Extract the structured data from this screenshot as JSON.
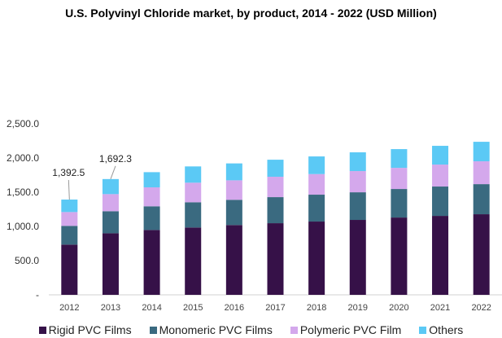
{
  "chart_data": {
    "type": "bar",
    "stacked": true,
    "title": "U.S. Polyvinyl Chloride market, by product, 2014 - 2022 (USD Million)",
    "xlabel": "",
    "ylabel": "",
    "ylim": [
      0,
      2500
    ],
    "yticks": [
      0,
      500,
      1000,
      1500,
      2000,
      2500
    ],
    "ytick_labels": [
      "-",
      "500.0",
      "1,000.0",
      "1,500.0",
      "2,000.0",
      "2,500.0"
    ],
    "grid": false,
    "legend_position": "bottom",
    "categories": [
      "2012",
      "2013",
      "2014",
      "2015",
      "2016",
      "2017",
      "2018",
      "2019",
      "2020",
      "2021",
      "2022"
    ],
    "series": [
      {
        "name": "Rigid PVC Films",
        "color": "#361148",
        "values": [
          734,
          900,
          948,
          984,
          1020,
          1047,
          1071,
          1095,
          1130,
          1154,
          1178
        ]
      },
      {
        "name": "Monomeric PVC Films",
        "color": "#3a6a80",
        "values": [
          274,
          322,
          346,
          369,
          369,
          381,
          393,
          404,
          417,
          429,
          440
        ]
      },
      {
        "name": "Polymeric PVC Film",
        "color": "#d4a8ec",
        "values": [
          202,
          250,
          277,
          286,
          285,
          298,
          301,
          310,
          309,
          321,
          334
        ]
      },
      {
        "name": "Others",
        "color": "#5bc9f5",
        "values": [
          182.5,
          220.3,
          222,
          238,
          247,
          249,
          258,
          274,
          274,
          274,
          285
        ]
      }
    ],
    "annotations": [
      {
        "category": "2012",
        "label": "1,392.5"
      },
      {
        "category": "2013",
        "label": "1,692.3"
      }
    ]
  }
}
